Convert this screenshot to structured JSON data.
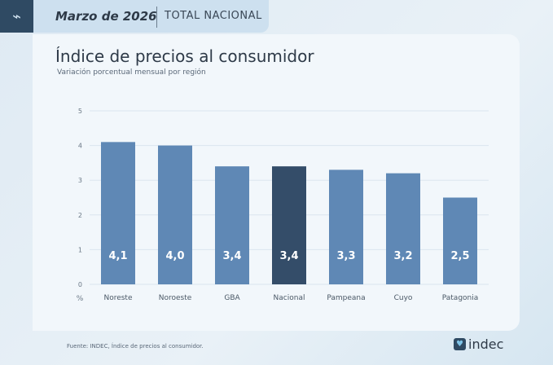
{
  "header": {
    "date": "Marzo de 2026",
    "scope": "TOTAL NACIONAL",
    "icon": "price-tag-trend-icon"
  },
  "footer": {
    "source": "Fuente: INDEC, Índice de precios al consumidor.",
    "logo_text": "indec"
  },
  "chart_data": {
    "type": "bar",
    "title": "Índice de precios al consumidor",
    "subtitle": "Variación porcentual mensual por región",
    "ylabel": "%",
    "categories": [
      "Noreste",
      "Noroeste",
      "GBA",
      "Nacional",
      "Pampeana",
      "Cuyo",
      "Patagonia"
    ],
    "values": [
      4.1,
      4.0,
      3.4,
      3.4,
      3.3,
      3.2,
      2.5
    ],
    "data_labels": [
      "4,1",
      "4,0",
      "3,4",
      "3,4",
      "3,3",
      "3,2",
      "2,5"
    ],
    "ylim": [
      0,
      5
    ],
    "yticks": [
      "0",
      "1",
      "2",
      "3",
      "4",
      "5"
    ],
    "grid": true,
    "colors": {
      "default": "#5f88b5",
      "highlight": "#344d69"
    },
    "highlight": "Nacional"
  }
}
